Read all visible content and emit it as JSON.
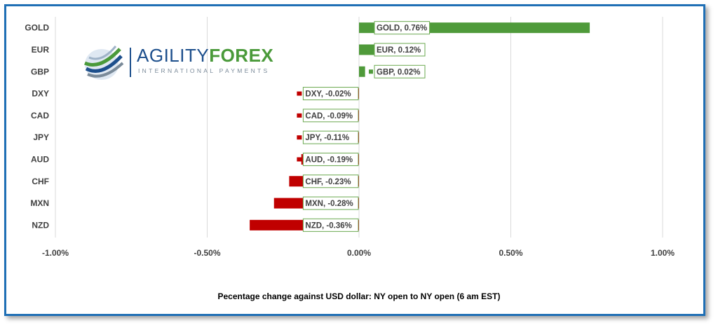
{
  "chart_data": {
    "type": "bar",
    "orientation": "horizontal",
    "categories": [
      "GOLD",
      "EUR",
      "GBP",
      "DXY",
      "CAD",
      "JPY",
      "AUD",
      "CHF",
      "MXN",
      "NZD"
    ],
    "values": [
      0.76,
      0.12,
      0.02,
      -0.02,
      -0.09,
      -0.11,
      -0.19,
      -0.23,
      -0.28,
      -0.36
    ],
    "data_labels": [
      "GOLD, 0.76%",
      "EUR, 0.12%",
      "GBP, 0.02%",
      "DXY, -0.02%",
      "CAD, -0.09%",
      "JPY, -0.11%",
      "AUD, -0.19%",
      "CHF, -0.23%",
      "MXN, -0.28%",
      "NZD, -0.36%"
    ],
    "xlim": [
      -1.0,
      1.0
    ],
    "xticks": [
      -1.0,
      -0.5,
      0.0,
      0.5,
      1.0
    ],
    "xtick_labels": [
      "-1.00%",
      "-0.50%",
      "0.00%",
      "0.50%",
      "1.00%"
    ],
    "grid": true,
    "colors": {
      "positive": "#4f9a3a",
      "negative": "#c00000",
      "label_border": "#6aa84f",
      "grid": "#d9d9d9"
    },
    "caption": "Pecentage change against USD dollar:  NY open to NY open  (6 am EST)"
  },
  "logo": {
    "word_main": "AGILITY",
    "word_accent": "FOREX",
    "subtitle": "INTERNATIONAL PAYMENTS",
    "icon": "globe-swoosh-icon"
  }
}
